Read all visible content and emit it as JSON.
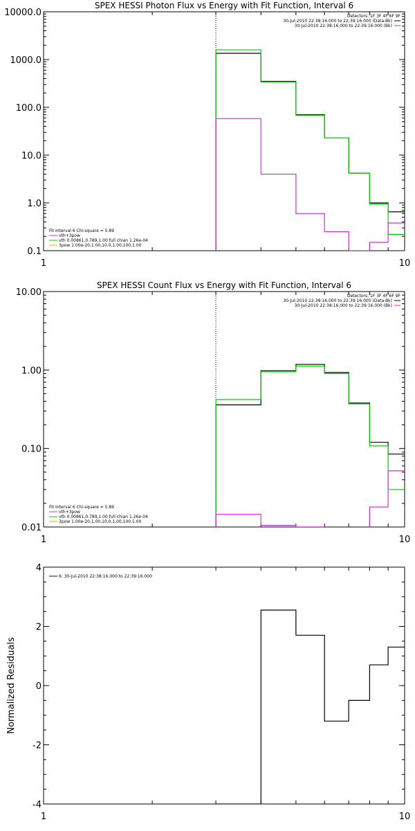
{
  "chart_data": [
    {
      "type": "line",
      "title": "SPEX HESSI Photon Flux vs Energy with Fit Function, Interval 6",
      "xlabel": "",
      "ylabel": "",
      "xscale": "log",
      "yscale": "log",
      "xlim": [
        1,
        10
      ],
      "ylim": [
        0.1,
        10000
      ],
      "x_ticklabels": [
        "1",
        "10"
      ],
      "y_ticks": [
        0.1,
        1,
        10,
        100,
        1000,
        10000
      ],
      "y_ticklabels": [
        "0.1",
        "1.0",
        "10.0",
        "100.0",
        "1000.0",
        "10000.0"
      ],
      "marker_x": 3.0,
      "legend_right": [
        "Detectors: 1F 3F 4F 6F 9F",
        "30-Jul-2010 22:38:16.000 to 22:39:16.000 (Data-Bk)",
        "30-Jul-2010 22:38:16.000 to 22:39:16.000 (Bk)"
      ],
      "legend_left": [
        "Fit Interval 6   Chi-square = 5.89",
        "vth+3pow",
        "vth 0.00861,0.789,1.00  full chian 1.26e-04",
        "3pow 1.00e-20,1.00,10.0,1.00,100,1.00"
      ],
      "edges": [
        3.0,
        4.0,
        5.0,
        6.0,
        7.0,
        8.0,
        9.0,
        10.0
      ],
      "series": [
        {
          "name": "Data-Bk",
          "color": "#000000",
          "values": [
            1350,
            350,
            70,
            23,
            4.2,
            1.0,
            0.65
          ]
        },
        {
          "name": "vth+3pow",
          "color": "#00cc00",
          "values": [
            1600,
            340,
            68,
            23,
            4.2,
            0.95,
            0.22
          ]
        },
        {
          "name": "Bk",
          "color": "#e020e0",
          "values": [
            58,
            4.0,
            0.6,
            0.25,
            0.1,
            0.15,
            0.38
          ]
        }
      ]
    },
    {
      "type": "line",
      "title": "SPEX HESSI Count Flux vs Energy with Fit Function, Interval 6",
      "xlabel": "",
      "ylabel": "",
      "xscale": "log",
      "yscale": "log",
      "xlim": [
        1,
        10
      ],
      "ylim": [
        0.01,
        10
      ],
      "x_ticklabels": [
        "1",
        "10"
      ],
      "y_ticks": [
        0.01,
        0.1,
        1,
        10
      ],
      "y_ticklabels": [
        "0.01",
        "0.10",
        "1.00",
        "10.00"
      ],
      "marker_x": 3.0,
      "legend_right": [
        "Detectors: 1F 3F 4F 6F 9F",
        "30-Jul-2010 22:38:16.000 to 22:39:16.000 (Data-Bk)",
        "30-Jul-2010 22:38:16.000 to 22:39:16.000 (Bk)"
      ],
      "legend_left": [
        "Fit Interval 6   Chi-square = 5.89",
        "vth+3pow",
        "vth 0.00861,0.789,1.00  full chian 1.26e-04",
        "3pow 1.00e-20,1.00,10.0,1.00,100,1.00"
      ],
      "edges": [
        3.0,
        4.0,
        5.0,
        6.0,
        7.0,
        8.0,
        9.0,
        10.0
      ],
      "series": [
        {
          "name": "Data-Bk",
          "color": "#000000",
          "values": [
            0.36,
            0.98,
            1.18,
            0.93,
            0.38,
            0.12,
            0.085
          ]
        },
        {
          "name": "vth+3pow",
          "color": "#00cc00",
          "values": [
            0.42,
            0.95,
            1.12,
            0.9,
            0.37,
            0.108,
            0.03
          ]
        },
        {
          "name": "Bk",
          "color": "#e020e0",
          "values": [
            0.0145,
            0.0105,
            0.01,
            0.0098,
            0.0098,
            0.018,
            0.052
          ]
        }
      ]
    },
    {
      "type": "line",
      "title": "",
      "xlabel": "",
      "ylabel": "Normalized Residuals",
      "xscale": "log",
      "yscale": "linear",
      "xlim": [
        1,
        10
      ],
      "ylim": [
        -4,
        4
      ],
      "x_ticklabels": [
        "1",
        "10"
      ],
      "y_ticks": [
        -4,
        -2,
        0,
        2,
        4
      ],
      "y_ticklabels": [
        "-4",
        "-2",
        "0",
        "2",
        "4"
      ],
      "legend_left": [
        "6: 30-Jul-2010 22:38:16.000 to 22:39:16.000"
      ],
      "edges": [
        3.0,
        4.0,
        5.0,
        6.0,
        7.0,
        8.0,
        9.0,
        10.0
      ],
      "series": [
        {
          "name": "6: 30-Jul-2010 22:38:16.000 to 22:39:16.000",
          "color": "#000000",
          "values": [
            -4.0,
            2.55,
            1.7,
            -1.2,
            -0.5,
            0.7,
            1.3
          ]
        }
      ]
    }
  ]
}
